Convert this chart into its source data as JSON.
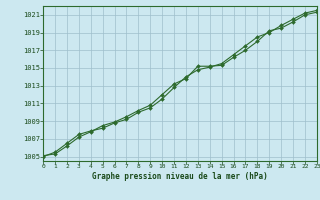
{
  "line1_x": [
    0,
    1,
    2,
    3,
    4,
    5,
    6,
    7,
    8,
    9,
    10,
    11,
    12,
    13,
    14,
    15,
    16,
    17,
    18,
    19,
    20,
    21,
    22,
    23
  ],
  "line1_y": [
    1005.1,
    1005.3,
    1006.2,
    1007.2,
    1007.8,
    1008.5,
    1008.9,
    1009.5,
    1010.2,
    1010.8,
    1012.0,
    1013.2,
    1013.8,
    1015.2,
    1015.2,
    1015.3,
    1016.2,
    1017.0,
    1018.0,
    1019.2,
    1019.5,
    1020.2,
    1021.0,
    1021.3
  ],
  "line2_x": [
    0,
    1,
    2,
    3,
    4,
    5,
    6,
    7,
    8,
    9,
    10,
    11,
    12,
    13,
    14,
    15,
    16,
    17,
    18,
    19,
    20,
    21,
    22,
    23
  ],
  "line2_y": [
    1005.0,
    1005.5,
    1006.5,
    1007.5,
    1007.9,
    1008.2,
    1008.8,
    1009.2,
    1010.0,
    1010.5,
    1011.5,
    1012.8,
    1014.0,
    1014.8,
    1015.1,
    1015.5,
    1016.5,
    1017.5,
    1018.5,
    1019.0,
    1019.8,
    1020.5,
    1021.2,
    1021.5
  ],
  "yticks": [
    1005,
    1007,
    1009,
    1011,
    1013,
    1015,
    1017,
    1019,
    1021
  ],
  "xticks": [
    0,
    1,
    2,
    3,
    4,
    5,
    6,
    7,
    8,
    9,
    10,
    11,
    12,
    13,
    14,
    15,
    16,
    17,
    18,
    19,
    20,
    21,
    22,
    23
  ],
  "xlim": [
    0,
    23
  ],
  "ylim": [
    1004.5,
    1022.0
  ],
  "line_color": "#2d6a2d",
  "marker_color": "#2d6a2d",
  "bg_color": "#cce8f0",
  "grid_color": "#9fbfcc",
  "xlabel": "Graphe pression niveau de la mer (hPa)",
  "xlabel_color": "#1a4a1a",
  "tick_color": "#1a4a1a",
  "spine_color": "#2d6a2d"
}
